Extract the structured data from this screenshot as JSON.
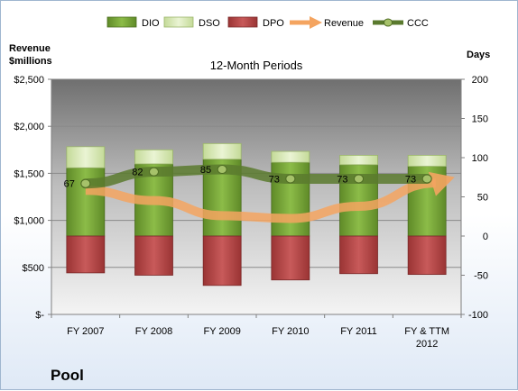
{
  "company": "Pool",
  "chart_data": {
    "type": "bar",
    "title": "12-Month Periods",
    "stacked": true,
    "categories": [
      "FY 2007",
      "FY 2008",
      "FY 2009",
      "FY 2010",
      "FY 2011",
      "FY & TTM 2012"
    ],
    "left_axis": {
      "label_line1": "Revenue",
      "label_line2": "$millions",
      "ylim": [
        0,
        2500
      ],
      "ticks": [
        0,
        500,
        1000,
        1500,
        2000,
        2500
      ],
      "tick_labels": [
        "$-",
        "$500",
        "$1,000",
        "$1,500",
        "$2,000",
        "$2,500"
      ]
    },
    "right_axis": {
      "label": "Days",
      "ylim": [
        -100,
        200
      ],
      "ticks": [
        -100,
        -50,
        0,
        50,
        100,
        150,
        200
      ],
      "tick_labels": [
        "-100",
        "-50",
        "0",
        "50",
        "100",
        "150",
        "200"
      ]
    },
    "series": [
      {
        "name": "DIO",
        "axis": "right",
        "kind": "bar",
        "color": "#7aa33a",
        "values": [
          87,
          92,
          98,
          94,
          91,
          89
        ]
      },
      {
        "name": "DSO",
        "axis": "right",
        "kind": "bar",
        "color": "#d6e8b0",
        "values": [
          27,
          18,
          20,
          14,
          12,
          14
        ]
      },
      {
        "name": "DPO",
        "axis": "right",
        "kind": "bar",
        "color": "#b84a4a",
        "values": [
          -47,
          -50,
          -63,
          -56,
          -48,
          -49
        ]
      },
      {
        "name": "Revenue",
        "axis": "left",
        "kind": "arrow-line",
        "color": "#f4a460",
        "values": [
          1320,
          1210,
          1050,
          1020,
          1150,
          1370
        ]
      },
      {
        "name": "CCC",
        "axis": "right",
        "kind": "line",
        "color": "#5a7a2e",
        "values": [
          67,
          82,
          85,
          73,
          73,
          73
        ]
      }
    ],
    "data_labels": [
      "67",
      "82",
      "85",
      "73",
      "73",
      "73"
    ],
    "legend_position": "top",
    "grid": true
  }
}
